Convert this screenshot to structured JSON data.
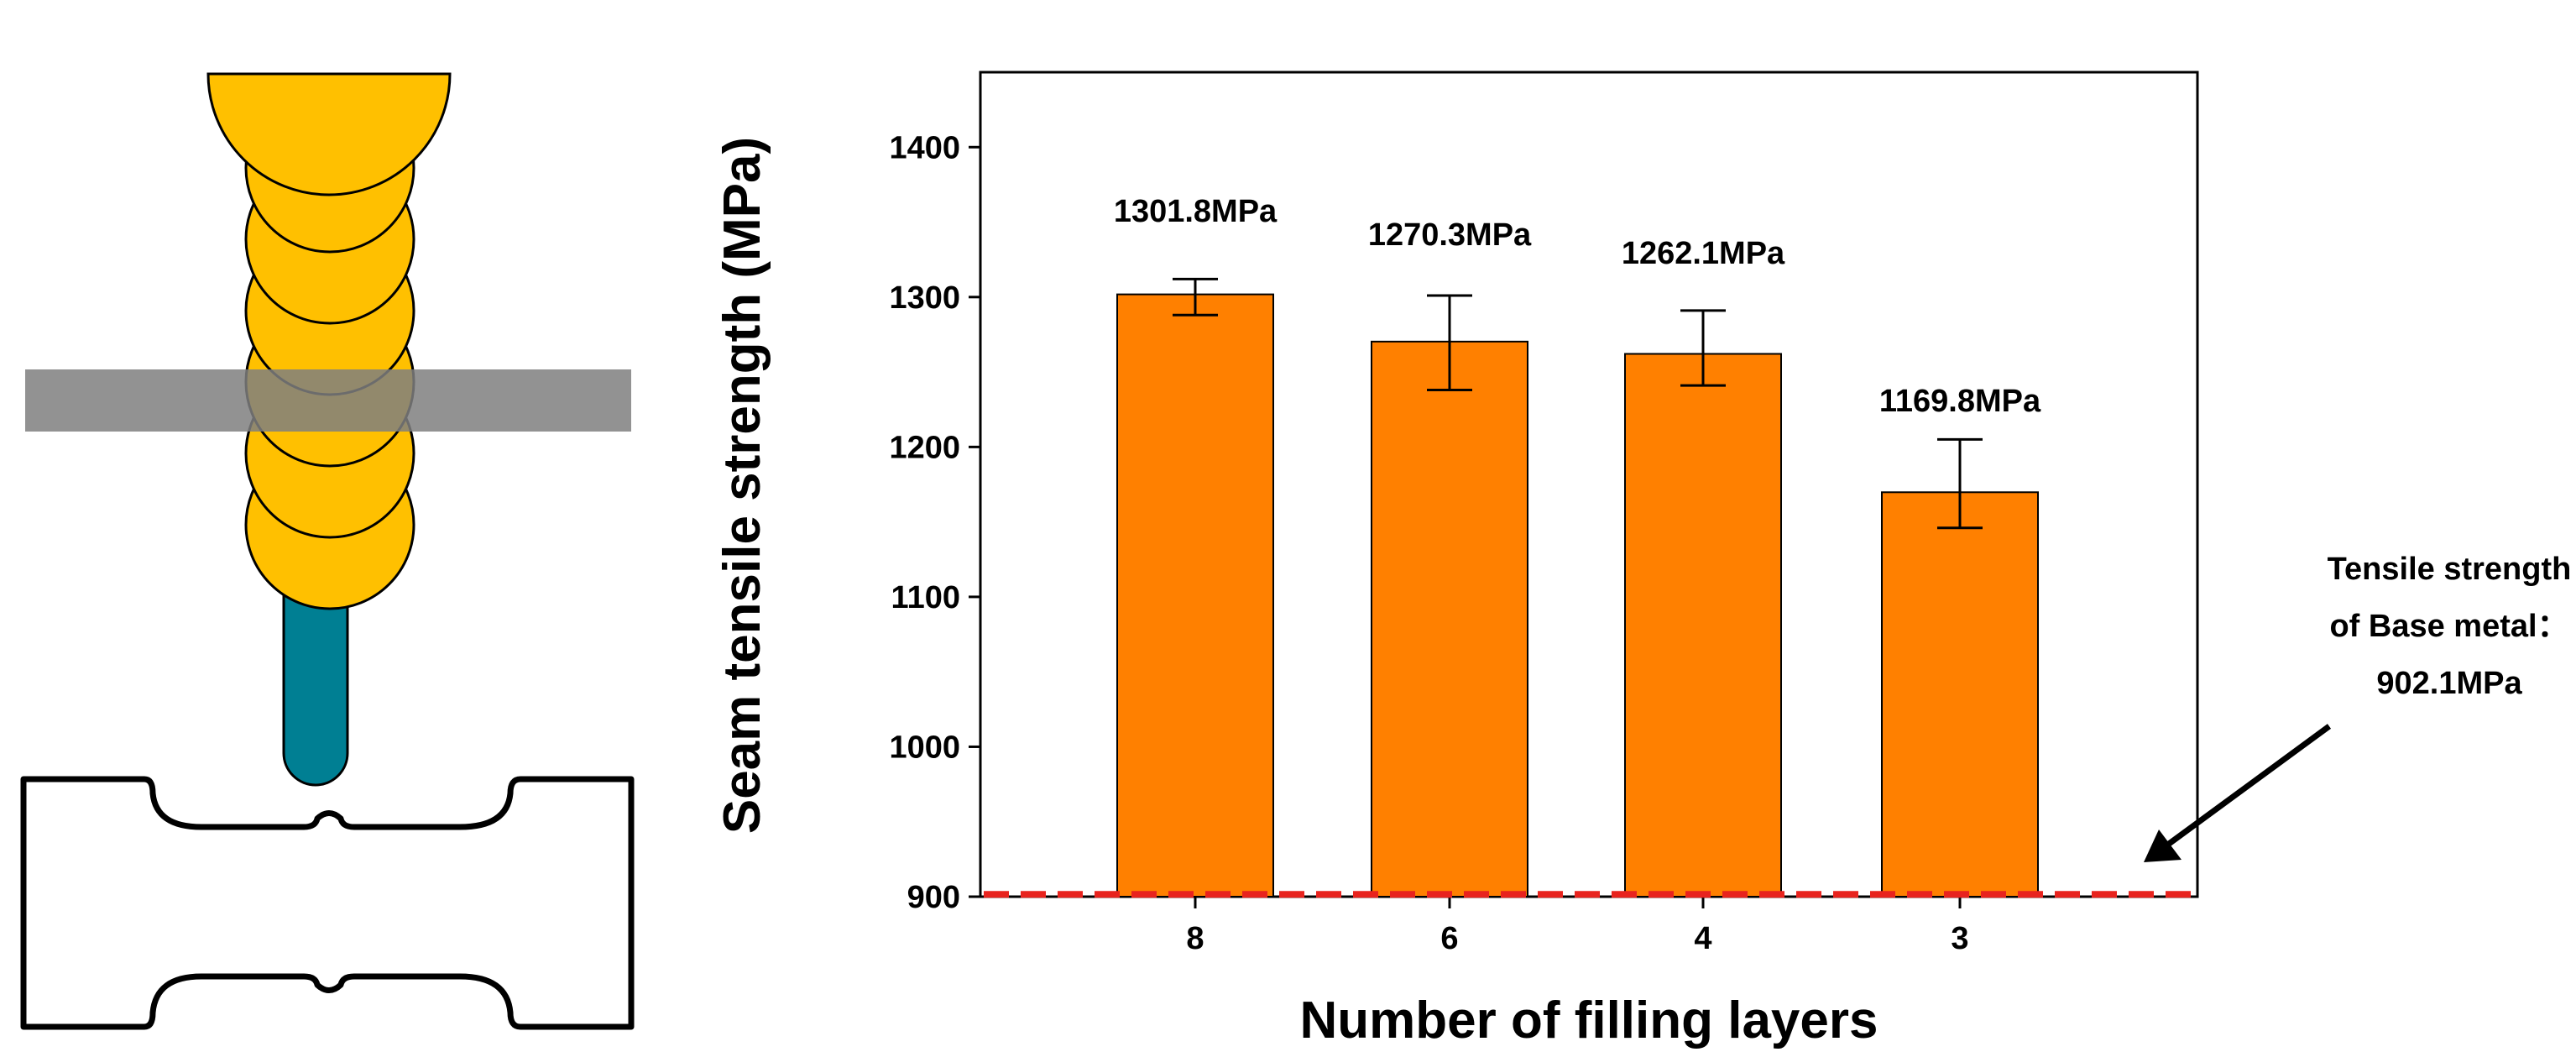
{
  "chart_data": {
    "type": "bar",
    "xlabel": "Number of filling layers",
    "ylabel": "Seam tensile strength (MPa)",
    "categories": [
      "8",
      "6",
      "4",
      "3"
    ],
    "values": [
      1301.8,
      1270.3,
      1262.1,
      1169.8
    ],
    "error_bars": [
      {
        "low": 1288,
        "high": 1312
      },
      {
        "low": 1238,
        "high": 1301
      },
      {
        "low": 1241,
        "high": 1291
      },
      {
        "low": 1146,
        "high": 1205
      }
    ],
    "data_labels": [
      "1301.8MPa",
      "1270.3MPa",
      "1262.1MPa",
      "1169.8MPa"
    ],
    "ylim": [
      900,
      1450
    ],
    "yticks": [
      900,
      1000,
      1100,
      1200,
      1300,
      1400
    ],
    "reference_line": {
      "value": 902.1,
      "style": "dashed",
      "color": "#e8231e"
    },
    "annotation": {
      "lines": [
        "Tensile strength",
        "of Base metal：",
        "902.1MPa"
      ]
    },
    "bar_color": "#ff8000",
    "grid": false
  },
  "diagram": {
    "bead_color": "#ffc000",
    "nozzle_color": "#007f93",
    "band_color": "#7f7f7f"
  }
}
